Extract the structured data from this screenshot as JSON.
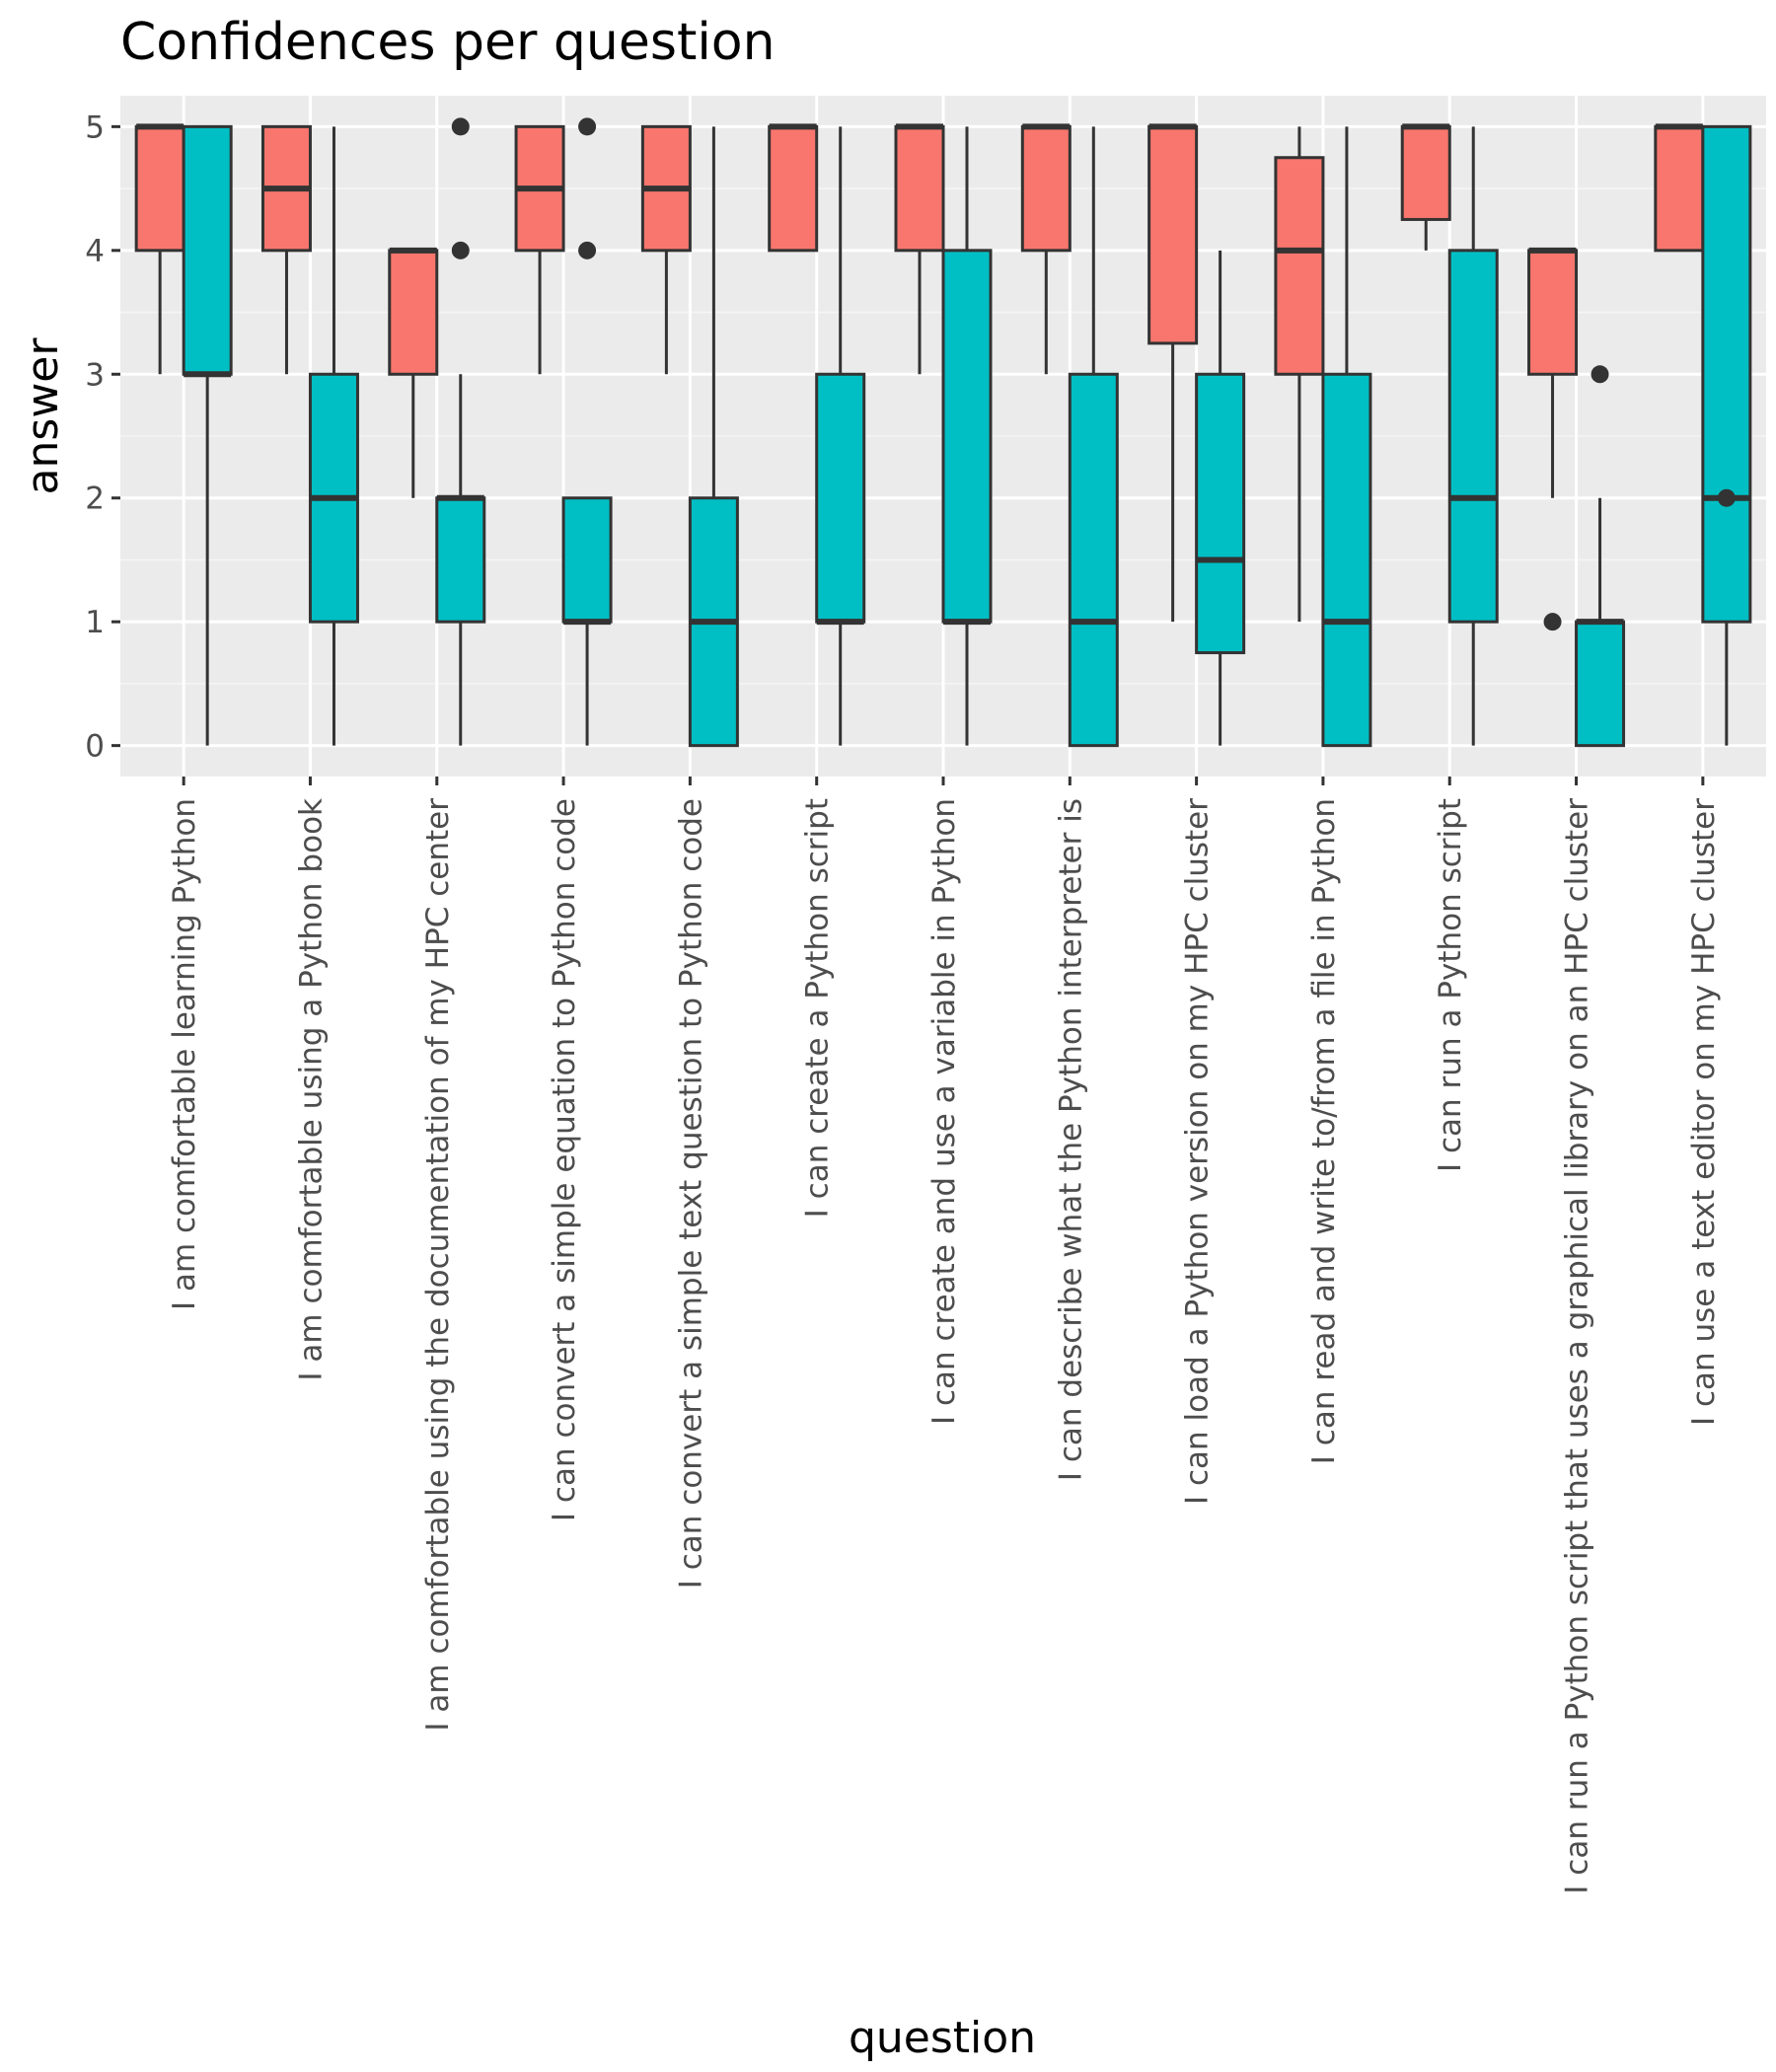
{
  "chart_data": {
    "type": "boxplot",
    "title": "Confidences per question",
    "xlabel": "question",
    "ylabel": "answer",
    "ylim": [
      -0.25,
      5.25
    ],
    "yticks": [
      0,
      1,
      2,
      3,
      4,
      5
    ],
    "grid": true,
    "legend": "none",
    "colors": {
      "panel_background": "#EBEBEB",
      "grid_major": "#FFFFFF",
      "grid_minor": "#F5F5F5",
      "box_outline": "#333333",
      "group_a": "#F8766D",
      "group_b": "#00BFC4"
    },
    "categories": [
      "I am comfortable learning Python",
      "I am comfortable using a Python book",
      "I am comfortable using the documentation of my HPC center",
      "I can convert a simple equation to Python code",
      "I can convert a simple text question to Python code",
      "I can create a Python script",
      "I can create and use a variable in Python",
      "I can describe what the Python interpreter is",
      "I can load a Python version on my HPC cluster",
      "I can read and write to/from a file in Python",
      "I can run a Python script",
      "I can run a Python script that uses a graphical library on an HPC cluster",
      "I can use a text editor on my HPC cluster"
    ],
    "series": [
      {
        "color": "#F8766D",
        "boxes": [
          {
            "whisker_low": 3,
            "q1": 4,
            "median": 5,
            "q3": 5,
            "whisker_high": 5,
            "outliers": []
          },
          {
            "whisker_low": 3,
            "q1": 4,
            "median": 4.5,
            "q3": 5,
            "whisker_high": 5,
            "outliers": []
          },
          {
            "whisker_low": 2,
            "q1": 3,
            "median": 4,
            "q3": 4,
            "whisker_high": 4,
            "outliers": []
          },
          {
            "whisker_low": 3,
            "q1": 4,
            "median": 4.5,
            "q3": 5,
            "whisker_high": 5,
            "outliers": []
          },
          {
            "whisker_low": 3,
            "q1": 4,
            "median": 4.5,
            "q3": 5,
            "whisker_high": 5,
            "outliers": []
          },
          {
            "whisker_low": 4,
            "q1": 4,
            "median": 5,
            "q3": 5,
            "whisker_high": 5,
            "outliers": []
          },
          {
            "whisker_low": 3,
            "q1": 4,
            "median": 5,
            "q3": 5,
            "whisker_high": 5,
            "outliers": []
          },
          {
            "whisker_low": 3,
            "q1": 4,
            "median": 5,
            "q3": 5,
            "whisker_high": 5,
            "outliers": []
          },
          {
            "whisker_low": 1,
            "q1": 3.25,
            "median": 5,
            "q3": 5,
            "whisker_high": 5,
            "outliers": []
          },
          {
            "whisker_low": 1,
            "q1": 3,
            "median": 4,
            "q3": 4.75,
            "whisker_high": 5,
            "outliers": []
          },
          {
            "whisker_low": 4,
            "q1": 4.25,
            "median": 5,
            "q3": 5,
            "whisker_high": 5,
            "outliers": []
          },
          {
            "whisker_low": 2,
            "q1": 3,
            "median": 4,
            "q3": 4,
            "whisker_high": 4,
            "outliers": [
              1
            ]
          },
          {
            "whisker_low": 4,
            "q1": 4,
            "median": 5,
            "q3": 5,
            "whisker_high": 5,
            "outliers": []
          }
        ]
      },
      {
        "color": "#00BFC4",
        "boxes": [
          {
            "whisker_low": 0,
            "q1": 3,
            "median": 3,
            "q3": 5,
            "whisker_high": 5,
            "outliers": []
          },
          {
            "whisker_low": 0,
            "q1": 1,
            "median": 2,
            "q3": 3,
            "whisker_high": 5,
            "outliers": []
          },
          {
            "whisker_low": 0,
            "q1": 1,
            "median": 2,
            "q3": 2,
            "whisker_high": 3,
            "outliers": [
              4,
              5
            ]
          },
          {
            "whisker_low": 0,
            "q1": 1,
            "median": 1,
            "q3": 2,
            "whisker_high": 2,
            "outliers": [
              4,
              5
            ]
          },
          {
            "whisker_low": 0,
            "q1": 0,
            "median": 1,
            "q3": 2,
            "whisker_high": 5,
            "outliers": []
          },
          {
            "whisker_low": 0,
            "q1": 1,
            "median": 1,
            "q3": 3,
            "whisker_high": 5,
            "outliers": []
          },
          {
            "whisker_low": 0,
            "q1": 1,
            "median": 1,
            "q3": 4,
            "whisker_high": 5,
            "outliers": []
          },
          {
            "whisker_low": 0,
            "q1": 0,
            "median": 1,
            "q3": 3,
            "whisker_high": 5,
            "outliers": []
          },
          {
            "whisker_low": 0,
            "q1": 0.75,
            "median": 1.5,
            "q3": 3,
            "whisker_high": 4,
            "outliers": []
          },
          {
            "whisker_low": 0,
            "q1": 0,
            "median": 1,
            "q3": 3,
            "whisker_high": 5,
            "outliers": []
          },
          {
            "whisker_low": 0,
            "q1": 1,
            "median": 2,
            "q3": 4,
            "whisker_high": 5,
            "outliers": []
          },
          {
            "whisker_low": 0,
            "q1": 0,
            "median": 1,
            "q3": 1,
            "whisker_high": 2,
            "outliers": [
              3
            ]
          },
          {
            "whisker_low": 0,
            "q1": 1,
            "median": 2,
            "q3": 5,
            "whisker_high": 5,
            "outliers": [
              2
            ]
          }
        ]
      }
    ]
  }
}
